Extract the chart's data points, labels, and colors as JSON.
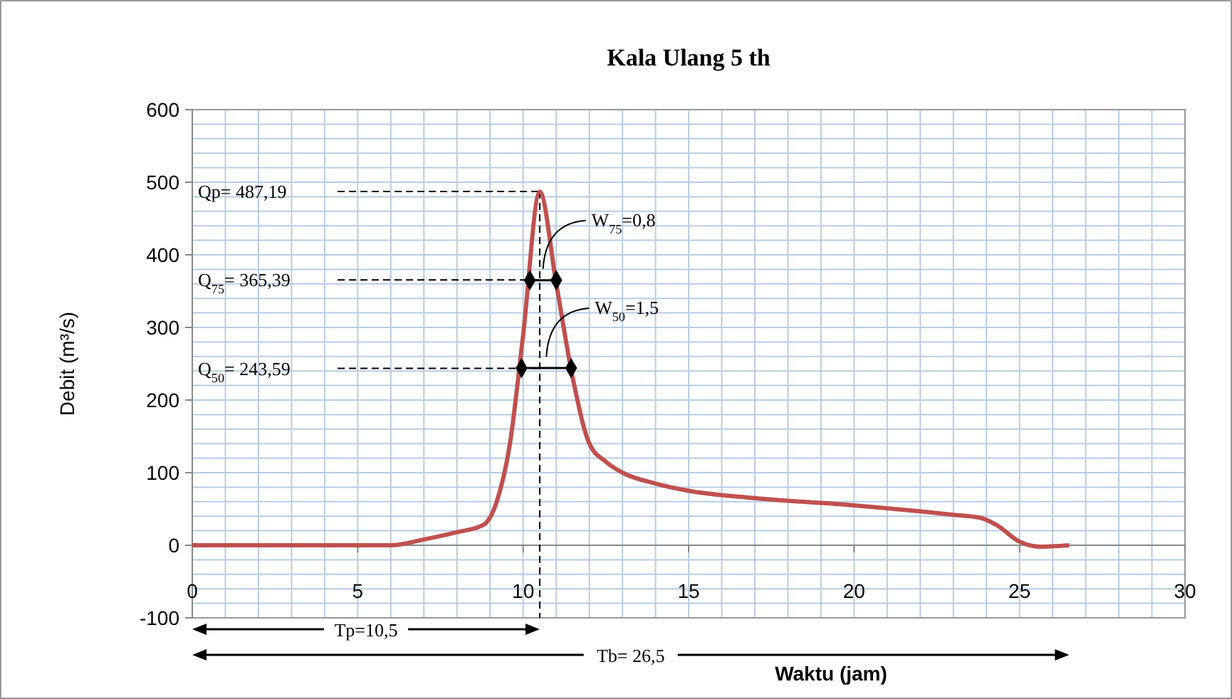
{
  "chart_data": {
    "type": "line",
    "title": "Kala Ulang 5 th",
    "xlabel": "Waktu (jam)",
    "ylabel": "Debit (m³/s)",
    "xlim": [
      0,
      30
    ],
    "ylim": [
      -100,
      600
    ],
    "xticks": [
      0,
      {
        "value": 1,
        "label": null
      },
      {
        "value": 2,
        "label": null
      },
      {
        "value": 3,
        "label": null
      },
      {
        "value": 4,
        "label": null
      },
      5,
      {
        "value": 6,
        "label": null
      },
      {
        "value": 7,
        "label": null
      },
      {
        "value": 8,
        "label": null
      },
      {
        "value": 9,
        "label": null
      },
      10,
      {
        "value": 11,
        "label": null
      },
      {
        "value": 12,
        "label": null
      },
      {
        "value": 13,
        "label": null
      },
      {
        "value": 14,
        "label": null
      },
      15,
      {
        "value": 16,
        "label": null
      },
      {
        "value": 17,
        "label": null
      },
      {
        "value": 18,
        "label": null
      },
      {
        "value": 19,
        "label": null
      },
      20,
      {
        "value": 21,
        "label": null
      },
      {
        "value": 22,
        "label": null
      },
      {
        "value": 23,
        "label": null
      },
      {
        "value": 24,
        "label": null
      },
      25,
      {
        "value": 26,
        "label": null
      },
      {
        "value": 27,
        "label": null
      },
      {
        "value": 28,
        "label": null
      },
      {
        "value": 29,
        "label": null
      },
      30
    ],
    "yticks": [
      -100,
      {
        "value": -80,
        "label": null
      },
      {
        "value": -60,
        "label": null
      },
      {
        "value": -40,
        "label": null
      },
      {
        "value": -20,
        "label": null
      },
      0,
      {
        "value": 20,
        "label": null
      },
      {
        "value": 40,
        "label": null
      },
      {
        "value": 60,
        "label": null
      },
      {
        "value": 80,
        "label": null
      },
      100,
      {
        "value": 120,
        "label": null
      },
      {
        "value": 140,
        "label": null
      },
      {
        "value": 160,
        "label": null
      },
      {
        "value": 180,
        "label": null
      },
      200,
      {
        "value": 220,
        "label": null
      },
      {
        "value": 240,
        "label": null
      },
      {
        "value": 260,
        "label": null
      },
      {
        "value": 280,
        "label": null
      },
      300,
      {
        "value": 320,
        "label": null
      },
      {
        "value": 340,
        "label": null
      },
      {
        "value": 360,
        "label": null
      },
      {
        "value": 380,
        "label": null
      },
      400,
      {
        "value": 420,
        "label": null
      },
      {
        "value": 440,
        "label": null
      },
      {
        "value": 460,
        "label": null
      },
      {
        "value": 480,
        "label": null
      },
      500,
      {
        "value": 520,
        "label": null
      },
      {
        "value": 540,
        "label": null
      },
      {
        "value": 560,
        "label": null
      },
      {
        "value": 580,
        "label": null
      },
      600
    ],
    "grid": true,
    "series": [
      {
        "color": "#c0504d",
        "marker": "none",
        "x": [
          0,
          3,
          5,
          6,
          7,
          8,
          8.8,
          9.2,
          9.6,
          10.0,
          10.5,
          11.0,
          11.5,
          12.0,
          12.5,
          13,
          14,
          15,
          17,
          20,
          23,
          23.8,
          24.3,
          25,
          25.6,
          26.5
        ],
        "values": [
          0,
          0,
          0,
          0,
          8,
          18,
          28,
          60,
          140,
          290,
          487,
          360,
          230,
          140,
          115,
          100,
          85,
          75,
          65,
          55,
          42,
          38,
          28,
          5,
          -2,
          0
        ]
      },
      {
        "type": "line",
        "color": "#000000",
        "marker": "diamond",
        "x": [
          10.2,
          11.0
        ],
        "values": [
          365,
          365
        ]
      },
      {
        "type": "line",
        "color": "#000000",
        "marker": "diamond",
        "x": [
          9.95,
          11.45
        ],
        "values": [
          244,
          244
        ]
      }
    ],
    "ref_lines": [
      {
        "axis": "x",
        "value": 10.5,
        "line_style": "dashed",
        "color": "#000000"
      },
      {
        "axis": "y",
        "value": 487.19,
        "label": "Qp= 487,19",
        "line_style": "dashed",
        "color": "#000000"
      },
      {
        "axis": "y",
        "value": 365.39,
        "label": "Q$_{75}$= 365,39",
        "line_style": "dashed",
        "color": "#000000"
      },
      {
        "axis": "y",
        "value": 243.59,
        "label": "Q$_{50}$= 243,59",
        "line_style": "dashed",
        "color": "#000000"
      }
    ],
    "annotations": [
      "W$_{75}$=0,8",
      "W$_{50}$=1,5",
      "Tp=10,5",
      "Tb= 26,5"
    ]
  }
}
